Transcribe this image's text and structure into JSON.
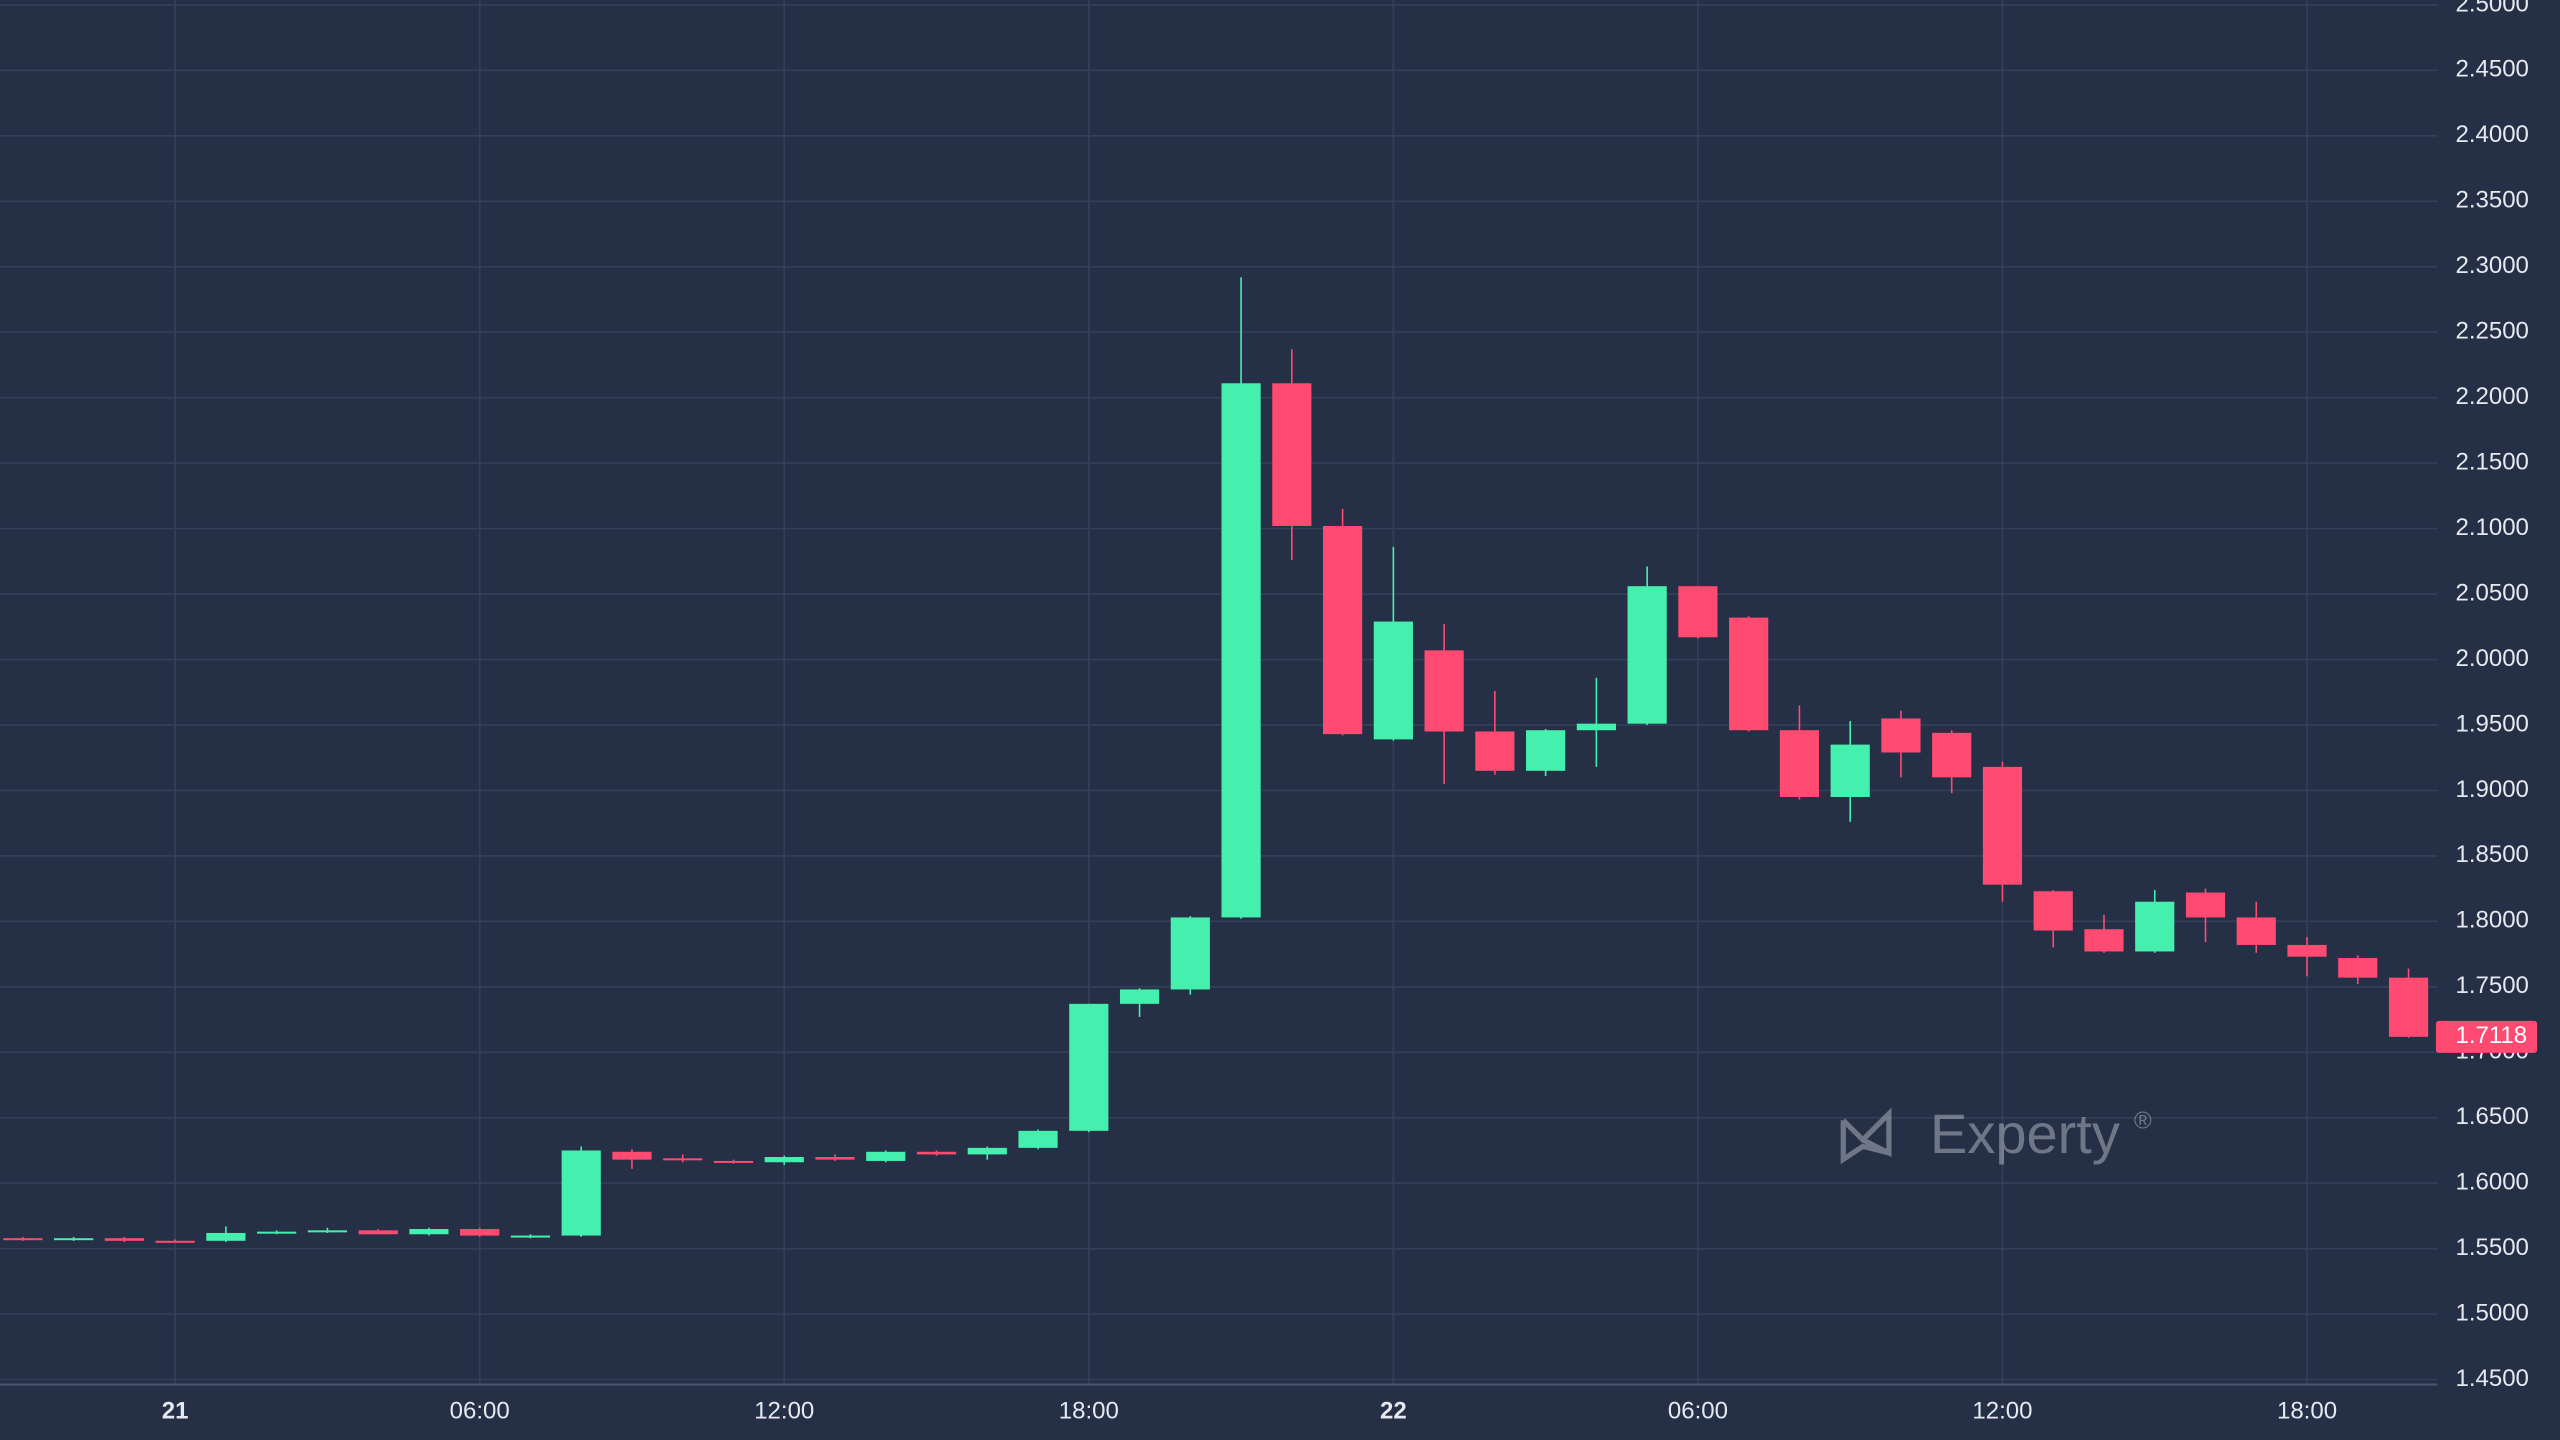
{
  "chart_data": {
    "type": "candlestick",
    "categories": [
      null,
      null,
      null,
      "21",
      null,
      null,
      null,
      null,
      null,
      "06:00",
      null,
      null,
      null,
      null,
      null,
      "12:00",
      null,
      null,
      null,
      null,
      null,
      "18:00",
      null,
      null,
      null,
      null,
      null,
      "22",
      null,
      null,
      null,
      null,
      null,
      "06:00",
      null,
      null,
      null,
      null,
      null,
      "12:00",
      null,
      null,
      null,
      null,
      null,
      "18:00",
      null,
      null
    ],
    "bold_categories": [
      "21",
      "22"
    ],
    "open": [
      1.558,
      1.557,
      1.558,
      1.556,
      1.556,
      1.562,
      1.563,
      1.564,
      1.561,
      1.565,
      1.559,
      1.56,
      1.624,
      1.619,
      1.617,
      1.616,
      1.62,
      1.617,
      1.624,
      1.622,
      1.627,
      1.64,
      1.737,
      1.748,
      1.803,
      2.211,
      2.102,
      1.939,
      2.007,
      1.945,
      1.915,
      1.946,
      1.951,
      2.056,
      2.032,
      1.946,
      1.895,
      1.955,
      1.944,
      1.918,
      1.823,
      1.794,
      1.777,
      1.822,
      1.803,
      1.782,
      1.772,
      1.757
    ],
    "high": [
      1.559,
      1.559,
      1.559,
      1.557,
      1.567,
      1.564,
      1.566,
      1.565,
      1.566,
      1.566,
      1.561,
      1.628,
      1.626,
      1.622,
      1.618,
      1.621,
      1.622,
      1.625,
      1.625,
      1.628,
      1.641,
      1.737,
      1.749,
      1.804,
      2.292,
      2.237,
      2.115,
      2.086,
      2.027,
      1.976,
      1.947,
      1.986,
      2.071,
      2.056,
      2.033,
      1.965,
      1.953,
      1.961,
      1.946,
      1.922,
      1.824,
      1.805,
      1.824,
      1.825,
      1.815,
      1.788,
      1.774,
      1.764
    ],
    "low": [
      1.556,
      1.556,
      1.555,
      1.555,
      1.555,
      1.561,
      1.562,
      1.561,
      1.56,
      1.559,
      1.558,
      1.559,
      1.611,
      1.616,
      1.615,
      1.614,
      1.617,
      1.616,
      1.621,
      1.618,
      1.626,
      1.639,
      1.727,
      1.744,
      1.802,
      2.076,
      1.942,
      1.938,
      1.905,
      1.912,
      1.911,
      1.918,
      1.95,
      2.016,
      1.945,
      1.893,
      1.876,
      1.91,
      1.898,
      1.815,
      1.78,
      1.776,
      1.776,
      1.784,
      1.776,
      1.758,
      1.752,
      1.711
    ],
    "close": [
      1.557,
      1.558,
      1.556,
      1.555,
      1.562,
      1.563,
      1.564,
      1.561,
      1.565,
      1.56,
      1.56,
      1.625,
      1.618,
      1.618,
      1.616,
      1.62,
      1.618,
      1.624,
      1.622,
      1.627,
      1.64,
      1.737,
      1.748,
      1.803,
      2.211,
      2.102,
      1.943,
      2.029,
      1.945,
      1.915,
      1.946,
      1.951,
      2.056,
      2.017,
      1.946,
      1.895,
      1.935,
      1.929,
      1.91,
      1.828,
      1.793,
      1.777,
      1.815,
      1.803,
      1.782,
      1.773,
      1.757,
      1.7118
    ],
    "up_color": "#45f0ae",
    "down_color": "#ff4a72",
    "ylim": [
      1.45,
      2.5
    ],
    "yticks": [
      {
        "value": 1.45,
        "label": "1.4500"
      },
      {
        "value": 1.5,
        "label": "1.5000"
      },
      {
        "value": 1.55,
        "label": "1.5500"
      },
      {
        "value": 1.6,
        "label": "1.6000"
      },
      {
        "value": 1.65,
        "label": "1.6500"
      },
      {
        "value": 1.7,
        "label": "1.7000"
      },
      {
        "value": 1.75,
        "label": "1.7500"
      },
      {
        "value": 1.8,
        "label": "1.8000"
      },
      {
        "value": 1.85,
        "label": "1.8500"
      },
      {
        "value": 1.9,
        "label": "1.9000"
      },
      {
        "value": 1.95,
        "label": "1.9500"
      },
      {
        "value": 2.0,
        "label": "2.0000"
      },
      {
        "value": 2.05,
        "label": "2.0500"
      },
      {
        "value": 2.1,
        "label": "2.1000"
      },
      {
        "value": 2.15,
        "label": "2.1500"
      },
      {
        "value": 2.2,
        "label": "2.2000"
      },
      {
        "value": 2.25,
        "label": "2.2500"
      },
      {
        "value": 2.3,
        "label": "2.3000"
      },
      {
        "value": 2.35,
        "label": "2.3500"
      },
      {
        "value": 2.4,
        "label": "2.4000"
      },
      {
        "value": 2.45,
        "label": "2.4500"
      },
      {
        "value": 2.5,
        "label": "2.5000"
      }
    ],
    "grid": true,
    "watermark": "Experty",
    "watermark_mark": "®"
  }
}
